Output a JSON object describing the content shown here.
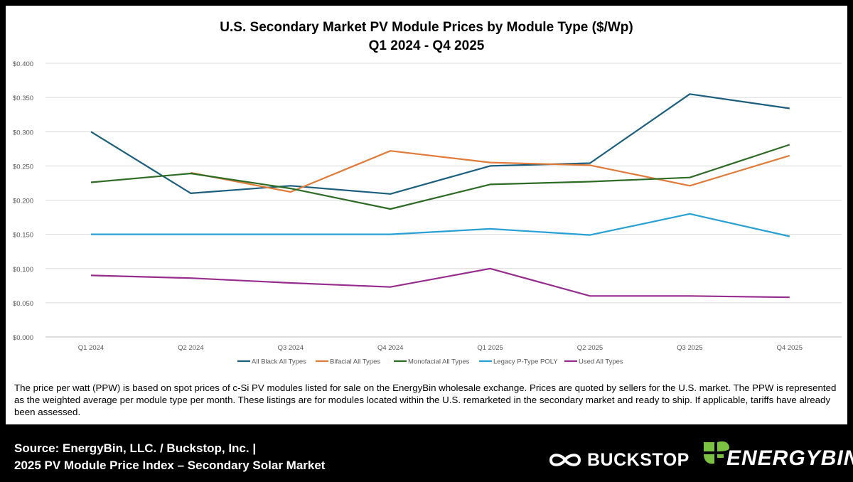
{
  "chart_data": {
    "type": "line",
    "title": "U.S. Secondary Market PV Module Prices by Module Type ($/Wp)",
    "subtitle": "Q1 2024 - Q4 2025",
    "categories": [
      "Q1 2024",
      "Q2 2024",
      "Q3 2024",
      "Q4 2024",
      "Q1 2025",
      "Q2 2025",
      "Q3 2025",
      "Q4 2025"
    ],
    "y_ticks": [
      "$0.000",
      "$0.050",
      "$0.100",
      "$0.150",
      "$0.200",
      "$0.250",
      "$0.300",
      "$0.350",
      "$0.400"
    ],
    "ylim": [
      0,
      0.4
    ],
    "grid": "horizontal",
    "legend_position": "bottom",
    "series": [
      {
        "name": "All Black All Types",
        "color": "#1b5e7e",
        "values": [
          0.3,
          0.21,
          0.221,
          0.209,
          0.25,
          0.254,
          0.355,
          0.334
        ]
      },
      {
        "name": "Bifacial All Types",
        "color": "#e07b39",
        "values": [
          null,
          0.24,
          0.212,
          0.272,
          0.255,
          0.251,
          0.221,
          0.265
        ]
      },
      {
        "name": "Monofacial All Types",
        "color": "#2e6b25",
        "values": [
          0.226,
          0.239,
          0.217,
          0.187,
          0.223,
          0.227,
          0.233,
          0.281
        ]
      },
      {
        "name": "Legacy P-Type POLY",
        "color": "#28a0d4",
        "values": [
          0.15,
          0.15,
          0.15,
          0.15,
          0.158,
          0.149,
          0.18,
          0.147
        ]
      },
      {
        "name": "Used All Types",
        "color": "#962d8d",
        "values": [
          0.09,
          0.086,
          0.079,
          0.073,
          0.1,
          0.06,
          0.06,
          0.058
        ]
      }
    ]
  },
  "note": "The price per watt (PPW) is based on spot prices of c-Si PV modules listed for sale on the EnergyBin wholesale exchange.  Prices are quoted by sellers for the U.S. market.  The PPW is represented as the weighted average per module type per month.  These listings are for modules located within the U.S. remarketed in the secondary market and ready to ship.  If applicable, tariffs have already been assessed.",
  "footer": {
    "source_line": "Source: EnergyBin, LLC. / Buckstop, Inc. |",
    "index_line": "2025 PV Module Price Index – Secondary Solar Market",
    "buckstop_logo": "BUCKSTOP",
    "energybin_logo": "ENERGYBIN"
  }
}
